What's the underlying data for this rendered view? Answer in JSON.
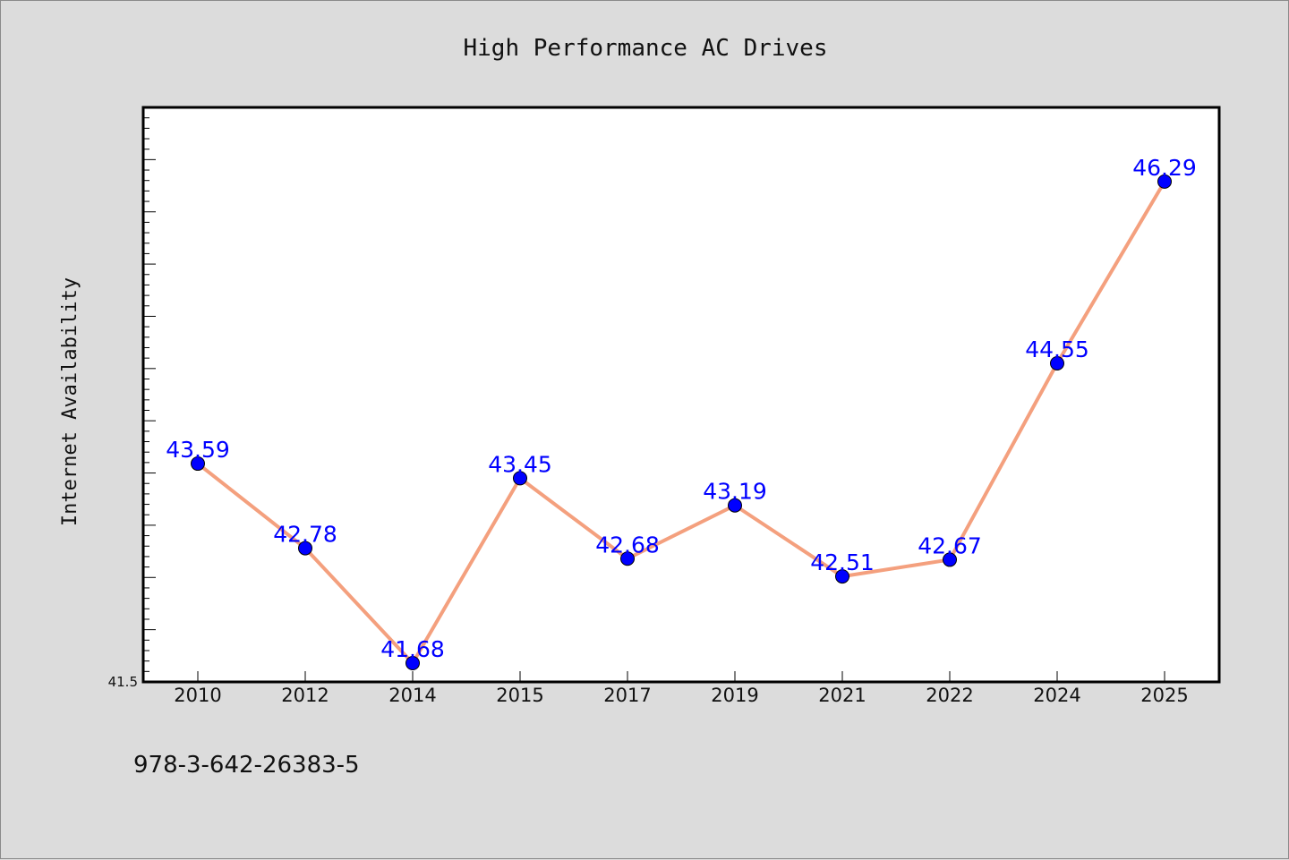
{
  "chart_data": {
    "type": "line",
    "title": "High Performance AC Drives",
    "xlabel": "",
    "ylabel": "Internet Availability",
    "categories": [
      "2010",
      "2012",
      "2014",
      "2015",
      "2017",
      "2019",
      "2021",
      "2022",
      "2024",
      "2025"
    ],
    "series": [
      {
        "values": [
          43.59,
          42.78,
          41.68,
          43.45,
          42.68,
          43.19,
          42.51,
          42.67,
          44.55,
          46.29
        ]
      }
    ],
    "data_labels": [
      "43.59",
      "42.78",
      "41.68",
      "43.45",
      "42.68",
      "43.19",
      "42.51",
      "42.67",
      "44.55",
      "46.29"
    ],
    "ylim": [
      41.5,
      47.0
    ],
    "y_tick_labels": [
      "41.5"
    ],
    "grid": false,
    "legend": "none",
    "line_color": "#f4a07e",
    "marker_color": "#0000ff",
    "label_color": "#0000ff",
    "background_color": "#dcdcdc",
    "plot_background": "#ffffff"
  },
  "footer": {
    "isbn": "978-3-642-26383-5"
  }
}
